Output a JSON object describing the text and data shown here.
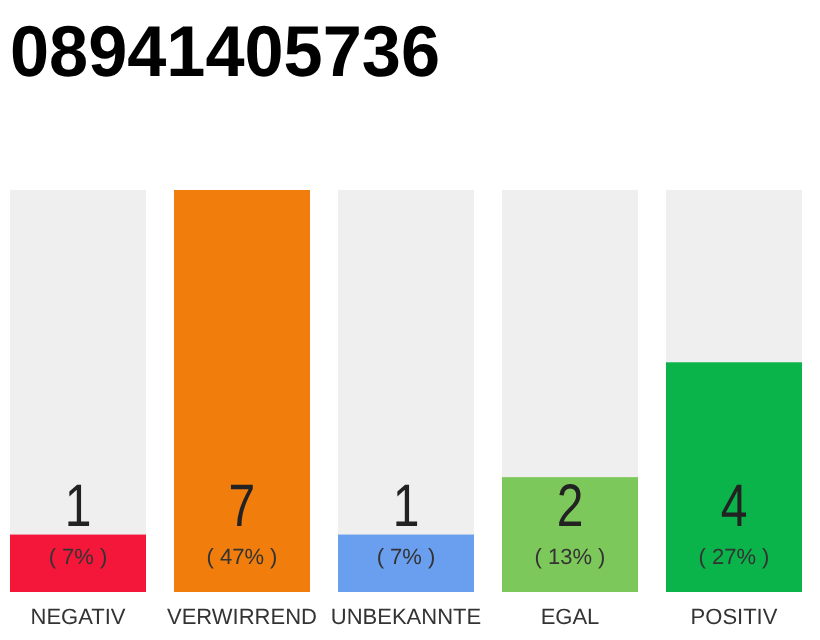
{
  "chart_data": {
    "type": "bar",
    "title": "08941405736",
    "categories": [
      "NEGATIV",
      "VERWIRREND",
      "UNBEKANNTE",
      "EGAL",
      "POSITIV"
    ],
    "values": [
      1,
      7,
      1,
      2,
      4
    ],
    "colors": [
      "#f5173a",
      "#f07d0c",
      "#6a9ff0",
      "#7dc85a",
      "#0bb34b"
    ],
    "data_labels": true,
    "annotations": [
      "( 7% )",
      "( 47% )",
      "( 7% )",
      "( 13% )",
      "( 27% )"
    ]
  }
}
